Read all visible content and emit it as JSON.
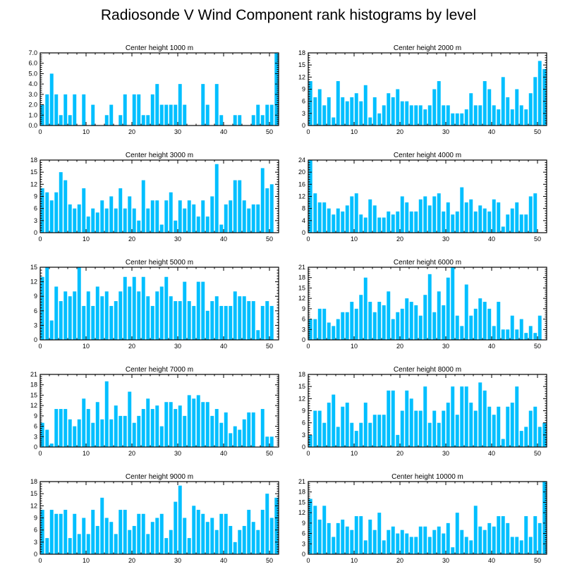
{
  "title": "Radiosonde V Wind Component rank histograms by level",
  "bar_color": "#00bfff",
  "chart_data": [
    {
      "type": "bar",
      "title": "Center height 1000 m",
      "x": [
        0,
        1,
        2,
        3,
        4,
        5,
        6,
        7,
        8,
        9,
        10,
        11,
        12,
        13,
        14,
        15,
        16,
        17,
        18,
        19,
        20,
        21,
        22,
        23,
        24,
        25,
        26,
        27,
        28,
        29,
        30,
        31,
        32,
        33,
        34,
        35,
        36,
        37,
        38,
        39,
        40,
        41,
        42,
        43,
        44,
        45,
        46,
        47,
        48,
        49,
        50,
        51
      ],
      "values": [
        2,
        3,
        5,
        3,
        1,
        3,
        1,
        3,
        0,
        3,
        0,
        2,
        0,
        0,
        1,
        2,
        0,
        1,
        3,
        0,
        3,
        3,
        1,
        1,
        3,
        4,
        2,
        2,
        2,
        2,
        4,
        2,
        0,
        0,
        0,
        4,
        2,
        0,
        4,
        1,
        0,
        0,
        1,
        1,
        0,
        0,
        1,
        2,
        1,
        2,
        2,
        7
      ],
      "ylim": [
        0,
        7
      ],
      "yticks": [
        0,
        1,
        2,
        3,
        4,
        5,
        6,
        7
      ],
      "ytick_labels": [
        "0.0",
        "1.0",
        "2.0",
        "3.0",
        "4.0",
        "5.0",
        "6.0",
        "7.0"
      ],
      "xlim": [
        0,
        52
      ],
      "xticks": [
        0,
        10,
        20,
        30,
        40,
        50
      ]
    },
    {
      "type": "bar",
      "title": "Center height 2000 m",
      "x": [
        0,
        1,
        2,
        3,
        4,
        5,
        6,
        7,
        8,
        9,
        10,
        11,
        12,
        13,
        14,
        15,
        16,
        17,
        18,
        19,
        20,
        21,
        22,
        23,
        24,
        25,
        26,
        27,
        28,
        29,
        30,
        31,
        32,
        33,
        34,
        35,
        36,
        37,
        38,
        39,
        40,
        41,
        42,
        43,
        44,
        45,
        46,
        47,
        48,
        49,
        50,
        51
      ],
      "values": [
        11,
        7,
        9,
        5,
        7,
        2,
        11,
        7,
        6,
        7,
        8,
        6,
        10,
        2,
        7,
        3,
        5,
        8,
        7,
        9,
        6,
        6,
        5,
        5,
        5,
        4,
        5,
        9,
        11,
        5,
        5,
        3,
        3,
        3,
        4,
        8,
        5,
        5,
        11,
        9,
        5,
        4,
        12,
        7,
        4,
        9,
        5,
        4,
        8,
        12,
        16,
        14
      ],
      "ylim": [
        0,
        18
      ],
      "yticks": [
        0,
        3,
        6,
        9,
        12,
        15,
        18
      ],
      "ytick_labels": [
        "0",
        "3",
        "6",
        "9",
        "12",
        "15",
        "18"
      ],
      "xlim": [
        0,
        52
      ],
      "xticks": [
        0,
        10,
        20,
        30,
        40,
        50
      ]
    },
    {
      "type": "bar",
      "title": "Center height 3000 m",
      "x": [
        0,
        1,
        2,
        3,
        4,
        5,
        6,
        7,
        8,
        9,
        10,
        11,
        12,
        13,
        14,
        15,
        16,
        17,
        18,
        19,
        20,
        21,
        22,
        23,
        24,
        25,
        26,
        27,
        28,
        29,
        30,
        31,
        32,
        33,
        34,
        35,
        36,
        37,
        38,
        39,
        40,
        41,
        42,
        43,
        44,
        45,
        46,
        47,
        48,
        49,
        50,
        51
      ],
      "values": [
        11,
        10,
        8,
        10,
        15,
        13,
        7,
        6,
        7,
        11,
        4,
        6,
        5,
        8,
        6,
        9,
        6,
        11,
        6,
        9,
        6,
        3,
        13,
        6,
        8,
        8,
        2,
        8,
        10,
        3,
        8,
        6,
        8,
        7,
        4,
        8,
        4,
        9,
        17,
        2,
        7,
        8,
        13,
        13,
        8,
        6,
        7,
        7,
        16,
        11,
        12,
        0
      ],
      "ylim": [
        0,
        18
      ],
      "yticks": [
        0,
        3,
        6,
        9,
        12,
        15,
        18
      ],
      "ytick_labels": [
        "0",
        "3",
        "6",
        "9",
        "12",
        "15",
        "18"
      ],
      "xlim": [
        0,
        52
      ],
      "xticks": [
        0,
        10,
        20,
        30,
        40,
        50
      ]
    },
    {
      "type": "bar",
      "title": "Center height 4000 m",
      "x": [
        0,
        1,
        2,
        3,
        4,
        5,
        6,
        7,
        8,
        9,
        10,
        11,
        12,
        13,
        14,
        15,
        16,
        17,
        18,
        19,
        20,
        21,
        22,
        23,
        24,
        25,
        26,
        27,
        28,
        29,
        30,
        31,
        32,
        33,
        34,
        35,
        36,
        37,
        38,
        39,
        40,
        41,
        42,
        43,
        44,
        45,
        46,
        47,
        48,
        49,
        50,
        51
      ],
      "values": [
        24,
        13,
        10,
        10,
        8,
        6,
        8,
        7,
        9,
        12,
        13,
        6,
        5,
        11,
        9,
        5,
        5,
        7,
        6,
        7,
        12,
        10,
        7,
        7,
        11,
        12,
        9,
        12,
        13,
        7,
        10,
        6,
        7,
        15,
        10,
        11,
        7,
        9,
        8,
        7,
        11,
        10,
        2,
        6,
        8,
        10,
        6,
        6,
        12,
        13,
        0,
        0
      ],
      "ylim": [
        0,
        24
      ],
      "yticks": [
        0,
        4,
        8,
        12,
        16,
        20,
        24
      ],
      "ytick_labels": [
        "0",
        "4",
        "8",
        "12",
        "16",
        "20",
        "24"
      ],
      "xlim": [
        0,
        52
      ],
      "xticks": [
        0,
        10,
        20,
        30,
        40,
        50
      ]
    },
    {
      "type": "bar",
      "title": "Center height 5000 m",
      "x": [
        0,
        1,
        2,
        3,
        4,
        5,
        6,
        7,
        8,
        9,
        10,
        11,
        12,
        13,
        14,
        15,
        16,
        17,
        18,
        19,
        20,
        21,
        22,
        23,
        24,
        25,
        26,
        27,
        28,
        29,
        30,
        31,
        32,
        33,
        34,
        35,
        36,
        37,
        38,
        39,
        40,
        41,
        42,
        43,
        44,
        45,
        46,
        47,
        48,
        49,
        50,
        51
      ],
      "values": [
        13,
        15,
        4,
        11,
        8,
        10,
        9,
        10,
        15,
        7,
        10,
        7,
        11,
        9,
        10,
        7,
        8,
        10,
        13,
        11,
        13,
        10,
        13,
        9,
        7,
        10,
        11,
        13,
        9,
        8,
        8,
        12,
        8,
        7,
        12,
        12,
        6,
        8,
        9,
        7,
        7,
        7,
        10,
        9,
        9,
        8,
        8,
        2,
        7,
        8,
        7,
        0
      ],
      "ylim": [
        0,
        15
      ],
      "yticks": [
        0,
        3,
        6,
        9,
        12,
        15
      ],
      "ytick_labels": [
        "0",
        "3",
        "6",
        "9",
        "12",
        "15"
      ],
      "xlim": [
        0,
        52
      ],
      "xticks": [
        0,
        10,
        20,
        30,
        40,
        50
      ]
    },
    {
      "type": "bar",
      "title": "Center height 6000 m",
      "x": [
        0,
        1,
        2,
        3,
        4,
        5,
        6,
        7,
        8,
        9,
        10,
        11,
        12,
        13,
        14,
        15,
        16,
        17,
        18,
        19,
        20,
        21,
        22,
        23,
        24,
        25,
        26,
        27,
        28,
        29,
        30,
        31,
        32,
        33,
        34,
        35,
        36,
        37,
        38,
        39,
        40,
        41,
        42,
        43,
        44,
        45,
        46,
        47,
        48,
        49,
        50,
        51
      ],
      "values": [
        6,
        6,
        9,
        9,
        5,
        4,
        6,
        8,
        8,
        11,
        9,
        13,
        18,
        11,
        8,
        11,
        10,
        14,
        6,
        8,
        9,
        12,
        11,
        10,
        7,
        13,
        19,
        8,
        14,
        10,
        18,
        21,
        7,
        4,
        16,
        7,
        9,
        12,
        11,
        9,
        4,
        11,
        3,
        3,
        7,
        3,
        6,
        2,
        4,
        2,
        7,
        0
      ],
      "ylim": [
        0,
        21
      ],
      "yticks": [
        0,
        3,
        6,
        9,
        12,
        15,
        18,
        21
      ],
      "ytick_labels": [
        "0",
        "3",
        "6",
        "9",
        "12",
        "15",
        "18",
        "21"
      ],
      "xlim": [
        0,
        52
      ],
      "xticks": [
        0,
        10,
        20,
        30,
        40,
        50
      ]
    },
    {
      "type": "bar",
      "title": "Center height 7000 m",
      "x": [
        0,
        1,
        2,
        3,
        4,
        5,
        6,
        7,
        8,
        9,
        10,
        11,
        12,
        13,
        14,
        15,
        16,
        17,
        18,
        19,
        20,
        21,
        22,
        23,
        24,
        25,
        26,
        27,
        28,
        29,
        30,
        31,
        32,
        33,
        34,
        35,
        36,
        37,
        38,
        39,
        40,
        41,
        42,
        43,
        44,
        45,
        46,
        47,
        48,
        49,
        50,
        51
      ],
      "values": [
        7,
        5,
        1,
        11,
        11,
        11,
        8,
        6,
        8,
        14,
        11,
        7,
        13,
        8,
        19,
        8,
        12,
        9,
        9,
        16,
        7,
        9,
        11,
        14,
        11,
        12,
        6,
        13,
        13,
        11,
        12,
        9,
        15,
        14,
        15,
        13,
        13,
        9,
        11,
        7,
        10,
        4,
        6,
        5,
        8,
        10,
        10,
        0,
        11,
        3,
        3,
        0
      ],
      "ylim": [
        0,
        21
      ],
      "yticks": [
        0,
        3,
        6,
        9,
        12,
        15,
        18,
        21
      ],
      "ytick_labels": [
        "0",
        "3",
        "6",
        "9",
        "12",
        "15",
        "18",
        "21"
      ],
      "xlim": [
        0,
        52
      ],
      "xticks": [
        0,
        10,
        20,
        30,
        40,
        50
      ]
    },
    {
      "type": "bar",
      "title": "Center height 8000 m",
      "x": [
        0,
        1,
        2,
        3,
        4,
        5,
        6,
        7,
        8,
        9,
        10,
        11,
        12,
        13,
        14,
        15,
        16,
        17,
        18,
        19,
        20,
        21,
        22,
        23,
        24,
        25,
        26,
        27,
        28,
        29,
        30,
        31,
        32,
        33,
        34,
        35,
        36,
        37,
        38,
        39,
        40,
        41,
        42,
        43,
        44,
        45,
        46,
        47,
        48,
        49,
        50,
        51
      ],
      "values": [
        3,
        9,
        9,
        6,
        11,
        13,
        5,
        10,
        11,
        6,
        4,
        6,
        11,
        6,
        8,
        8,
        8,
        14,
        14,
        3,
        9,
        14,
        12,
        9,
        9,
        15,
        6,
        9,
        6,
        9,
        11,
        15,
        8,
        15,
        15,
        11,
        9,
        16,
        14,
        10,
        8,
        10,
        2,
        10,
        11,
        15,
        4,
        5,
        9,
        10,
        5,
        6
      ],
      "ylim": [
        0,
        18
      ],
      "yticks": [
        0,
        3,
        6,
        9,
        12,
        15,
        18
      ],
      "ytick_labels": [
        "0",
        "3",
        "6",
        "9",
        "12",
        "15",
        "18"
      ],
      "xlim": [
        0,
        52
      ],
      "xticks": [
        0,
        10,
        20,
        30,
        40,
        50
      ]
    },
    {
      "type": "bar",
      "title": "Center height 9000 m",
      "x": [
        0,
        1,
        2,
        3,
        4,
        5,
        6,
        7,
        8,
        9,
        10,
        11,
        12,
        13,
        14,
        15,
        16,
        17,
        18,
        19,
        20,
        21,
        22,
        23,
        24,
        25,
        26,
        27,
        28,
        29,
        30,
        31,
        32,
        33,
        34,
        35,
        36,
        37,
        38,
        39,
        40,
        41,
        42,
        43,
        44,
        45,
        46,
        47,
        48,
        49,
        50,
        51
      ],
      "values": [
        11,
        4,
        11,
        10,
        10,
        11,
        4,
        10,
        5,
        9,
        5,
        11,
        7,
        14,
        9,
        8,
        5,
        11,
        11,
        6,
        7,
        10,
        10,
        5,
        8,
        9,
        10,
        4,
        6,
        13,
        17,
        9,
        4,
        12,
        11,
        10,
        8,
        9,
        6,
        10,
        10,
        7,
        3,
        6,
        7,
        11,
        8,
        6,
        11,
        15,
        9,
        14
      ],
      "ylim": [
        0,
        18
      ],
      "yticks": [
        0,
        3,
        6,
        9,
        12,
        15,
        18
      ],
      "ytick_labels": [
        "0",
        "3",
        "6",
        "9",
        "12",
        "15",
        "18"
      ],
      "xlim": [
        0,
        52
      ],
      "xticks": [
        0,
        10,
        20,
        30,
        40,
        50
      ]
    },
    {
      "type": "bar",
      "title": "Center height 10000 m",
      "x": [
        0,
        1,
        2,
        3,
        4,
        5,
        6,
        7,
        8,
        9,
        10,
        11,
        12,
        13,
        14,
        15,
        16,
        17,
        18,
        19,
        20,
        21,
        22,
        23,
        24,
        25,
        26,
        27,
        28,
        29,
        30,
        31,
        32,
        33,
        34,
        35,
        36,
        37,
        38,
        39,
        40,
        41,
        42,
        43,
        44,
        45,
        46,
        47,
        48,
        49,
        50,
        51
      ],
      "values": [
        16,
        14,
        10,
        14,
        9,
        5,
        9,
        10,
        8,
        7,
        11,
        11,
        4,
        10,
        7,
        12,
        4,
        7,
        8,
        6,
        7,
        6,
        5,
        5,
        8,
        8,
        5,
        7,
        8,
        6,
        9,
        2,
        12,
        7,
        5,
        4,
        14,
        8,
        7,
        9,
        8,
        11,
        11,
        9,
        5,
        5,
        4,
        11,
        5,
        11,
        9,
        21
      ],
      "ylim": [
        0,
        21
      ],
      "yticks": [
        0,
        3,
        6,
        9,
        12,
        15,
        18,
        21
      ],
      "ytick_labels": [
        "0",
        "3",
        "6",
        "9",
        "12",
        "15",
        "18",
        "21"
      ],
      "xlim": [
        0,
        52
      ],
      "xticks": [
        0,
        10,
        20,
        30,
        40,
        50
      ]
    }
  ]
}
